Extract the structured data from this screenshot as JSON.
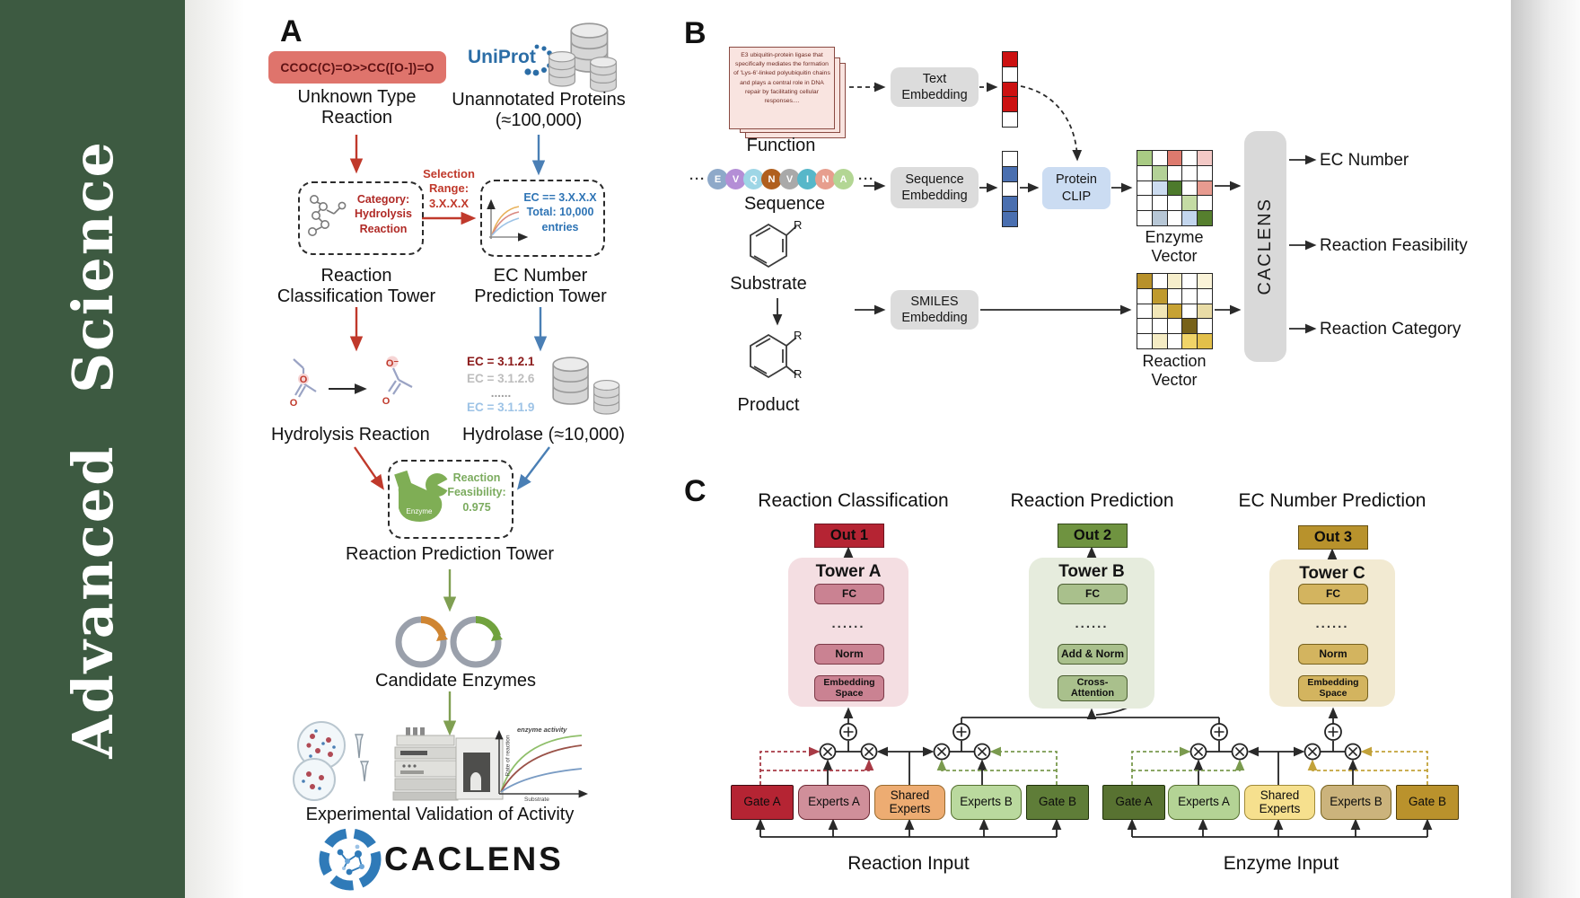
{
  "journal": {
    "name": "Advanced Science"
  },
  "colors": {
    "sidebar_green": "#3d5a41",
    "accent_red": "#c0392b",
    "accent_blue": "#4a7fb5",
    "accent_green": "#7f9f52",
    "uniprot_blue": "#2b6da6"
  },
  "panelA": {
    "label": "A",
    "smiles": "CCOC(C)=O>>CC([O-])=O",
    "unknown_label": "Unknown Type Reaction",
    "uniprot": "UniProt",
    "unannotated_label": "Unannotated Proteins (≈100,000)",
    "selection_label": "Selection Range: 3.X.X.X",
    "category_label": "Category: Hydrolysis Reaction",
    "ec_range_label": "EC == 3.X.X.X Total: 10,000 entries",
    "rc_tower": "Reaction Classification Tower",
    "ec_tower": "EC Number Prediction Tower",
    "hydrolysis_label": "Hydrolysis Reaction",
    "ec_list": [
      {
        "text": "EC = 3.1.2.1",
        "color": "#8b1a1a"
      },
      {
        "text": "EC = 3.1.2.6",
        "color": "#bdbdbd"
      },
      {
        "text": "......",
        "color": "#9e9e9e"
      },
      {
        "text": "EC = 3.1.1.9",
        "color": "#9dc3e6"
      }
    ],
    "hydrolase_label": "Hydrolase (≈10,000)",
    "enzyme_icon_label": "Enzyme",
    "feasibility_label": "Reaction Feasibility: 0.975",
    "rp_tower": "Reaction Prediction Tower",
    "candidates_label": "Candidate Enzymes",
    "validation_label": "Experimental Validation of Activity",
    "molecule_atoms": {
      "o": "O",
      "o_minus": "O⁻"
    },
    "activity_plot": {
      "curve_label": "enzyme activity",
      "ylabel": "Rate of reaction",
      "xlabel": "Substrate"
    },
    "brand": "CACLENS"
  },
  "panelB": {
    "label": "B",
    "function_card_text": "E3 ubiquitin-protein ligase that specifically mediates the formation of 'Lys-6'-linked polyubiquitin chains and plays a central role in DNA repair by facilitating cellular responses....",
    "function_label": "Function",
    "ellipsis": "···",
    "residues": [
      {
        "letter": "E",
        "color": "#8ea9c9"
      },
      {
        "letter": "V",
        "color": "#b48ed6"
      },
      {
        "letter": "Q",
        "color": "#9ed6e6"
      },
      {
        "letter": "N",
        "color": "#b05f1e"
      },
      {
        "letter": "V",
        "color": "#a9a9a9"
      },
      {
        "letter": "I",
        "color": "#57b7c9"
      },
      {
        "letter": "N",
        "color": "#e79e8e"
      },
      {
        "letter": "A",
        "color": "#b3d694"
      }
    ],
    "sequence_label": "Sequence",
    "substrate_label": "Substrate",
    "product_label": "Product",
    "r_label": "R",
    "text_embedding": "Text Embedding",
    "sequence_embedding": "Sequence Embedding",
    "smiles_embedding": "SMILES Embedding",
    "protein_clip": "Protein CLIP",
    "text_vector_cells": [
      "#cc1111",
      "#ffffff",
      "#cc1111",
      "#cc1111",
      "#ffffff"
    ],
    "sequence_vector_cells": [
      "#ffffff",
      "#4a6fb0",
      "#ffffff",
      "#4a6fb0",
      "#4a6fb0"
    ],
    "enzyme_vector_label": "Enzyme Vector",
    "enzyme_vector_cells": [
      [
        "#a9cb84",
        "#ffffff",
        "#dd7a6e",
        "#ffffff",
        "#f3c9c6"
      ],
      [
        "#ffffff",
        "#b3d197",
        "#ffffff",
        "#ffffff",
        "#ffffff"
      ],
      [
        "#ffffff",
        "#ccdcf0",
        "#4d7a2c",
        "#ffffff",
        "#e79b90"
      ],
      [
        "#ffffff",
        "#ffffff",
        "#ffffff",
        "#c4dba4",
        "#ffffff"
      ],
      [
        "#ffffff",
        "#b7c7d6",
        "#ffffff",
        "#c3d6ee",
        "#567f2e"
      ]
    ],
    "reaction_vector_label": "Reaction Vector",
    "reaction_vector_cells": [
      [
        "#b8912a",
        "#ffffff",
        "#f6eecb",
        "#ffffff",
        "#faf3d8"
      ],
      [
        "#ffffff",
        "#bf9a2e",
        "#ffffff",
        "#ffffff",
        "#ffffff"
      ],
      [
        "#ffffff",
        "#f2e7b8",
        "#c7a233",
        "#ffffff",
        "#e9dca6"
      ],
      [
        "#ffffff",
        "#ffffff",
        "#ffffff",
        "#77621a",
        "#ffffff"
      ],
      [
        "#ffffff",
        "#f5ecc4",
        "#ffffff",
        "#f0d468",
        "#e3c04a"
      ]
    ],
    "caclens_bar": "CACLENS",
    "out_ec": "EC Number",
    "out_feasibility": "Reaction Feasibility",
    "out_category": "Reaction Category"
  },
  "panelC": {
    "label": "C",
    "title_classification": "Reaction Classification",
    "title_prediction": "Reaction Prediction",
    "title_ec": "EC Number Prediction",
    "out1": "Out 1",
    "out2": "Out 2",
    "out3": "Out 3",
    "towerA": {
      "name": "Tower A",
      "fc": "FC",
      "dots": "......",
      "norm": "Norm",
      "emb": "Embedding Space"
    },
    "towerB": {
      "name": "Tower B",
      "fc": "FC",
      "dots": "......",
      "addnorm": "Add & Norm",
      "cross": "Cross-Attention"
    },
    "towerC": {
      "name": "Tower C",
      "fc": "FC",
      "dots": "......",
      "norm": "Norm",
      "emb": "Embedding Space"
    },
    "moe_reaction": {
      "gate_a": "Gate A",
      "experts_a": "Experts A",
      "shared": "Shared Experts",
      "experts_b": "Experts B",
      "gate_b": "Gate B",
      "input": "Reaction Input"
    },
    "moe_enzyme": {
      "gate_a": "Gate A",
      "experts_a": "Experts A",
      "shared": "Shared Experts",
      "experts_b": "Experts B",
      "gate_b": "Gate B",
      "input": "Enzyme Input"
    }
  }
}
